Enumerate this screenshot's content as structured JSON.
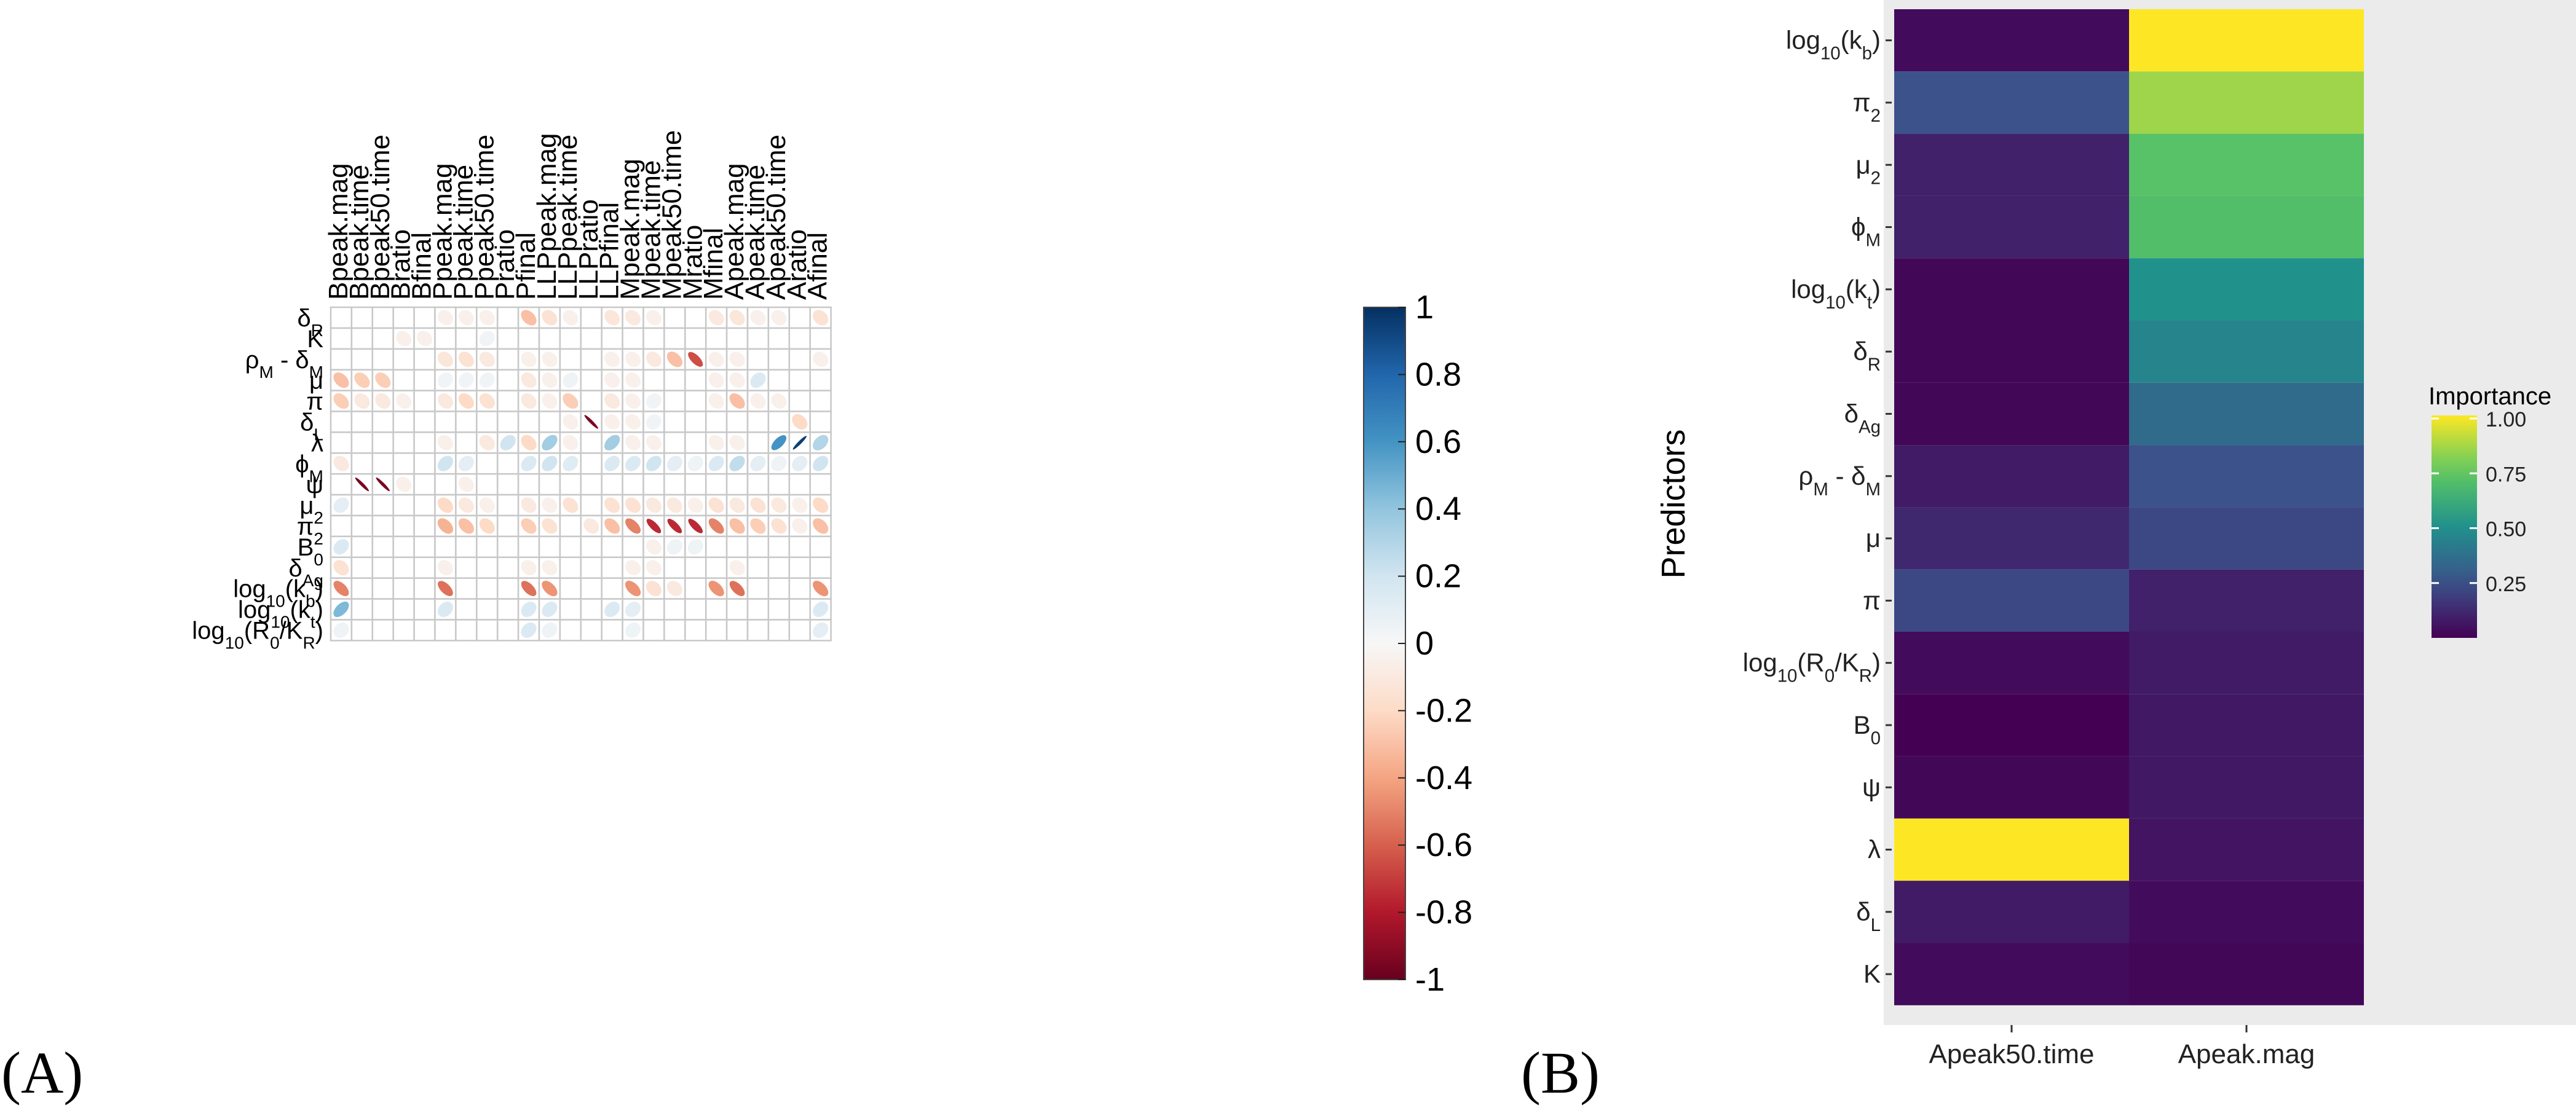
{
  "panel_labels": {
    "a": "(A)",
    "b": "(B)"
  },
  "chart_data": [
    {
      "type": "heatmap",
      "subtype": "correlation-ellipse",
      "title": "",
      "columns": [
        "Bpeak.mag",
        "Bpeak.time",
        "Bpeak50.time",
        "Bratio",
        "Bfinal",
        "Ppeak.mag",
        "Ppeak.time",
        "Ppeak50.time",
        "Pratio",
        "Pfinal",
        "LLPpeak.mag",
        "LLPpeak.time",
        "LLPratio",
        "LLPfinal",
        "Mpeak.mag",
        "Mpeak.time",
        "Mpeak50.time",
        "Mratio",
        "Mfinal",
        "Apeak.mag",
        "Apeak.time",
        "Apeak50.time",
        "Aratio",
        "Afinal"
      ],
      "rows": [
        {
          "base": "δ",
          "sub": "R"
        },
        {
          "base": "K",
          "sub": ""
        },
        {
          "base": "ρ",
          "sub": "M",
          "after": " - δ",
          "sub2": "M"
        },
        {
          "base": "μ",
          "sub": ""
        },
        {
          "base": "π",
          "sub": ""
        },
        {
          "base": "δ",
          "sub": "L"
        },
        {
          "base": "λ",
          "sub": ""
        },
        {
          "base": "ϕ",
          "sub": "M"
        },
        {
          "base": "ψ",
          "sub": ""
        },
        {
          "base": "μ",
          "sub": "2"
        },
        {
          "base": "π",
          "sub": "2"
        },
        {
          "base": "B",
          "sub": "0"
        },
        {
          "base": "δ",
          "sub": "Ag"
        },
        {
          "base": "log",
          "sub": "10",
          "after": "(k",
          "sub2": "b",
          "tail": ")"
        },
        {
          "base": "log",
          "sub": "10",
          "after": "(k",
          "sub2": "t",
          "tail": ")"
        },
        {
          "base": "log",
          "sub": "10",
          "after": "(R",
          "sub2": "0",
          "tail": "/K",
          "sub3": "R",
          "tail2": ")"
        }
      ],
      "values": [
        [
          0,
          0,
          0,
          0,
          0,
          -0.05,
          -0.05,
          -0.05,
          0,
          -0.3,
          -0.15,
          -0.05,
          0,
          -0.12,
          -0.1,
          -0.05,
          0,
          0,
          -0.1,
          -0.12,
          -0.05,
          -0.05,
          0,
          -0.15
        ],
        [
          0,
          0,
          0,
          -0.05,
          -0.05,
          0,
          0,
          0.03,
          0,
          0,
          0,
          0,
          0,
          0,
          0,
          0,
          0,
          0,
          0,
          0,
          0,
          0,
          0,
          0
        ],
        [
          0,
          0,
          0,
          0,
          0,
          -0.12,
          -0.15,
          -0.1,
          0,
          -0.05,
          -0.05,
          0,
          0,
          -0.05,
          -0.05,
          -0.1,
          -0.3,
          -0.65,
          -0.05,
          -0.05,
          0,
          0,
          0,
          -0.05
        ],
        [
          -0.3,
          -0.25,
          -0.25,
          0,
          0,
          0.03,
          0.03,
          0.03,
          0,
          -0.1,
          -0.05,
          0.05,
          0,
          -0.05,
          -0.05,
          0,
          0,
          0,
          -0.05,
          -0.05,
          0.15,
          0,
          0,
          0
        ],
        [
          -0.25,
          -0.1,
          -0.1,
          -0.05,
          0,
          -0.1,
          -0.2,
          -0.15,
          0,
          -0.1,
          -0.05,
          -0.25,
          0,
          -0.1,
          -0.05,
          0.03,
          0,
          0,
          -0.05,
          -0.3,
          -0.05,
          -0.05,
          0,
          0
        ],
        [
          0,
          0,
          0,
          0,
          0,
          0,
          0,
          0,
          0,
          0,
          0,
          -0.05,
          -0.95,
          -0.05,
          -0.05,
          0.03,
          0,
          0,
          0,
          0,
          0,
          0,
          -0.2,
          0
        ],
        [
          0,
          0,
          0,
          0,
          0,
          -0.05,
          0,
          -0.1,
          0.2,
          -0.2,
          0.35,
          -0.05,
          0,
          0.35,
          -0.05,
          -0.05,
          0,
          0,
          -0.05,
          -0.05,
          0,
          0.6,
          0.95,
          0.3
        ],
        [
          -0.1,
          0,
          0,
          0,
          0,
          0.2,
          0.1,
          0,
          0,
          0.15,
          0.2,
          0.12,
          0,
          0.15,
          0.15,
          0.2,
          0.1,
          0.05,
          0.15,
          0.25,
          0.1,
          0.05,
          0.1,
          0.2
        ],
        [
          0,
          -0.95,
          -0.95,
          -0.05,
          0,
          0,
          -0.05,
          0,
          0,
          0,
          0,
          0,
          0,
          0,
          0,
          0,
          0,
          0,
          0,
          0,
          0,
          0,
          0,
          0
        ],
        [
          0.1,
          0,
          0,
          0,
          0,
          -0.2,
          -0.1,
          -0.05,
          0,
          -0.1,
          -0.05,
          -0.15,
          0,
          -0.15,
          -0.15,
          -0.1,
          -0.1,
          -0.05,
          -0.15,
          -0.1,
          -0.15,
          -0.1,
          -0.05,
          -0.2
        ],
        [
          0,
          0,
          0,
          0,
          0,
          -0.35,
          -0.3,
          -0.2,
          0,
          -0.25,
          -0.15,
          0,
          -0.1,
          -0.3,
          -0.5,
          -0.75,
          -0.75,
          -0.75,
          -0.5,
          -0.3,
          -0.25,
          -0.15,
          -0.05,
          -0.3
        ],
        [
          0.15,
          0,
          0,
          0,
          0,
          0,
          0,
          0,
          0,
          0,
          0,
          0,
          0,
          0,
          0,
          -0.05,
          0.05,
          0.05,
          0,
          0,
          0,
          0,
          0,
          0
        ],
        [
          -0.15,
          0,
          0,
          0,
          0,
          -0.05,
          0,
          0,
          0,
          -0.05,
          -0.05,
          0,
          0,
          0,
          -0.05,
          -0.05,
          0,
          0,
          0,
          -0.05,
          0,
          0,
          0,
          0
        ],
        [
          -0.5,
          0,
          0,
          0,
          0,
          -0.55,
          0,
          0,
          0,
          -0.55,
          -0.45,
          0,
          0,
          0,
          -0.45,
          -0.15,
          -0.1,
          0,
          -0.45,
          -0.55,
          0,
          0,
          0,
          -0.45
        ],
        [
          0.45,
          0,
          0,
          0,
          0,
          0.15,
          0,
          0,
          0,
          0.15,
          0.15,
          0,
          0,
          0.15,
          0.1,
          0,
          0,
          0,
          0,
          0,
          0,
          0,
          0,
          0.15
        ],
        [
          0.05,
          0,
          0,
          0,
          0,
          0,
          0,
          0,
          0,
          0.15,
          0.05,
          0,
          0,
          0,
          0.05,
          0,
          0,
          0,
          0,
          0,
          0,
          0,
          0,
          0.1
        ]
      ],
      "colorbar": {
        "range": [
          -1,
          1
        ],
        "ticks": [
          "1",
          "0.8",
          "0.6",
          "0.4",
          "0.2",
          "0",
          "-0.2",
          "-0.4",
          "-0.6",
          "-0.8",
          "-1"
        ]
      }
    },
    {
      "type": "heatmap",
      "title": "",
      "ylabel": "Predictors",
      "xlabel": "",
      "columns": [
        "Apeak50.time",
        "Apeak.mag"
      ],
      "rows": [
        {
          "base": "log",
          "sub": "10",
          "after": "(k",
          "sub2": "b",
          "tail": ")"
        },
        {
          "base": "π",
          "sub": "2"
        },
        {
          "base": "μ",
          "sub": "2"
        },
        {
          "base": "ϕ",
          "sub": "M"
        },
        {
          "base": "log",
          "sub": "10",
          "after": "(k",
          "sub2": "t",
          "tail": ")"
        },
        {
          "base": "δ",
          "sub": "R"
        },
        {
          "base": "δ",
          "sub": "Ag"
        },
        {
          "base": "ρ",
          "sub": "M",
          "after": " - δ",
          "sub2": "M"
        },
        {
          "base": "μ",
          "sub": ""
        },
        {
          "base": "π",
          "sub": ""
        },
        {
          "base": "log",
          "sub": "10",
          "after": "(R",
          "sub2": "0",
          "tail": "/K",
          "sub3": "R",
          "tail2": ")"
        },
        {
          "base": "B",
          "sub": "0"
        },
        {
          "base": "ψ",
          "sub": ""
        },
        {
          "base": "λ",
          "sub": ""
        },
        {
          "base": "δ",
          "sub": "L"
        },
        {
          "base": "K",
          "sub": ""
        }
      ],
      "values": [
        [
          0.03,
          1.0
        ],
        [
          0.25,
          0.85
        ],
        [
          0.1,
          0.72
        ],
        [
          0.1,
          0.7
        ],
        [
          0.02,
          0.5
        ],
        [
          0.02,
          0.45
        ],
        [
          0.02,
          0.35
        ],
        [
          0.08,
          0.25
        ],
        [
          0.12,
          0.22
        ],
        [
          0.22,
          0.1
        ],
        [
          0.03,
          0.08
        ],
        [
          0.0,
          0.07
        ],
        [
          0.02,
          0.07
        ],
        [
          1.0,
          0.06
        ],
        [
          0.08,
          0.03
        ],
        [
          0.03,
          0.02
        ]
      ],
      "legend": {
        "title": "Importance",
        "ticks": [
          "1.00",
          "0.75",
          "0.50",
          "0.25"
        ],
        "tick_values": [
          1.0,
          0.75,
          0.5,
          0.25
        ],
        "range": [
          0,
          1
        ]
      }
    }
  ]
}
